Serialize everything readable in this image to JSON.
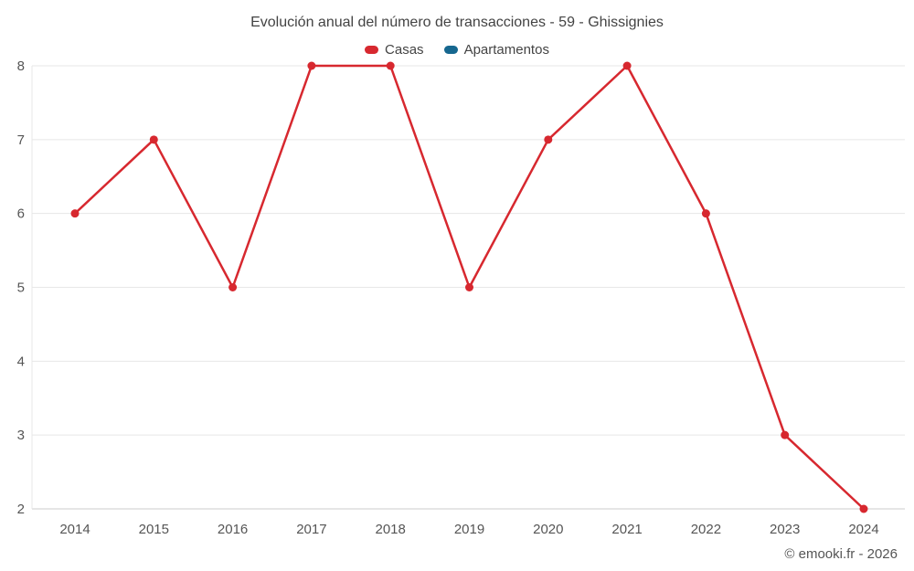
{
  "header": {
    "title": "Evolución anual del número de transacciones - 59 - Ghissignies"
  },
  "legend": {
    "items": [
      {
        "label": "Casas",
        "color": "#d7282f"
      },
      {
        "label": "Apartamentos",
        "color": "#16678f"
      }
    ]
  },
  "footer": {
    "copyright": "© emooki.fr - 2026"
  },
  "chart_data": {
    "type": "line",
    "title": "Evolución anual del número de transacciones - 59 - Ghissignies",
    "x": [
      2014,
      2015,
      2016,
      2017,
      2018,
      2019,
      2020,
      2021,
      2022,
      2023,
      2024
    ],
    "series": [
      {
        "name": "Casas",
        "color": "#d7282f",
        "values": [
          6,
          7,
          5,
          8,
          8,
          5,
          7,
          8,
          6,
          3,
          2
        ]
      },
      {
        "name": "Apartamentos",
        "color": "#16678f",
        "values": []
      }
    ],
    "ylim": [
      2,
      8
    ],
    "yticks": [
      2,
      3,
      4,
      5,
      6,
      7,
      8
    ],
    "xlabel": "",
    "ylabel": "",
    "grid": true,
    "legend_position": "top"
  }
}
